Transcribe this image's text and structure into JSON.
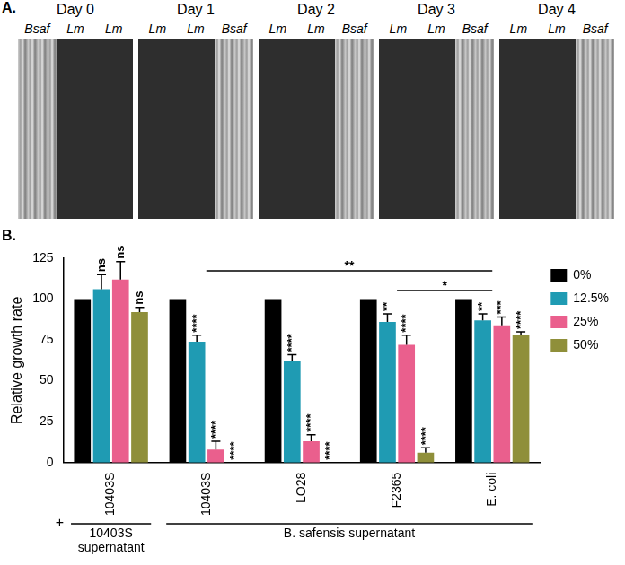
{
  "panel_a": {
    "label": "A.",
    "plates": [
      {
        "title": "Day 0",
        "lanes": [
          "Bsaf",
          "Lm",
          "Lm"
        ]
      },
      {
        "title": "Day 1",
        "lanes": [
          "Lm",
          "Lm",
          "Bsaf"
        ]
      },
      {
        "title": "Day 2",
        "lanes": [
          "Lm",
          "Lm",
          "Bsaf"
        ]
      },
      {
        "title": "Day 3",
        "lanes": [
          "Lm",
          "Lm",
          "Bsaf"
        ]
      },
      {
        "title": "Day 4",
        "lanes": [
          "Lm",
          "Lm",
          "Bsaf"
        ]
      }
    ]
  },
  "chart_data": {
    "type": "bar",
    "panel_label": "B.",
    "categories": [
      "10403S",
      "10403S",
      "LO28",
      "F2365",
      "E. coli"
    ],
    "series": [
      {
        "name": "0%",
        "color": "#000000",
        "values": [
          100,
          100,
          100,
          100,
          100
        ],
        "errors": [
          0,
          0,
          0,
          0,
          0
        ],
        "significance": [
          null,
          null,
          null,
          null,
          null
        ]
      },
      {
        "name": "12.5%",
        "color": "#1f9bb3",
        "values": [
          106,
          74,
          62,
          86,
          87
        ],
        "errors": [
          9,
          4,
          4,
          5,
          4
        ],
        "significance": [
          "ns",
          "****",
          "****",
          "**",
          "**"
        ]
      },
      {
        "name": "25%",
        "color": "#ea5f8d",
        "values": [
          112,
          8,
          13,
          72,
          84
        ],
        "errors": [
          11,
          5,
          4,
          6,
          5
        ],
        "significance": [
          "ns",
          "****",
          "****",
          "****",
          "***"
        ]
      },
      {
        "name": "50%",
        "color": "#8f8f3a",
        "values": [
          92,
          0,
          0,
          6,
          78
        ],
        "errors": [
          3,
          0,
          0,
          3,
          2
        ],
        "significance": [
          "ns",
          "****",
          "****",
          "****",
          "****"
        ]
      }
    ],
    "y_label": "Relative growth rate",
    "ylim": [
      0,
      125
    ],
    "yticks": [
      0,
      25,
      50,
      75,
      100,
      125
    ],
    "grid": false,
    "legend": "right",
    "group_prefix": "+",
    "groups": [
      {
        "label": "10403S supernatant",
        "from": 0,
        "to": 0
      },
      {
        "label": "B. safensis supernatant",
        "from": 1,
        "to": 4
      }
    ],
    "comparisons": [
      {
        "from": 1,
        "to": 4,
        "label": "**"
      },
      {
        "from": 3,
        "to": 4,
        "label": "*"
      }
    ]
  }
}
